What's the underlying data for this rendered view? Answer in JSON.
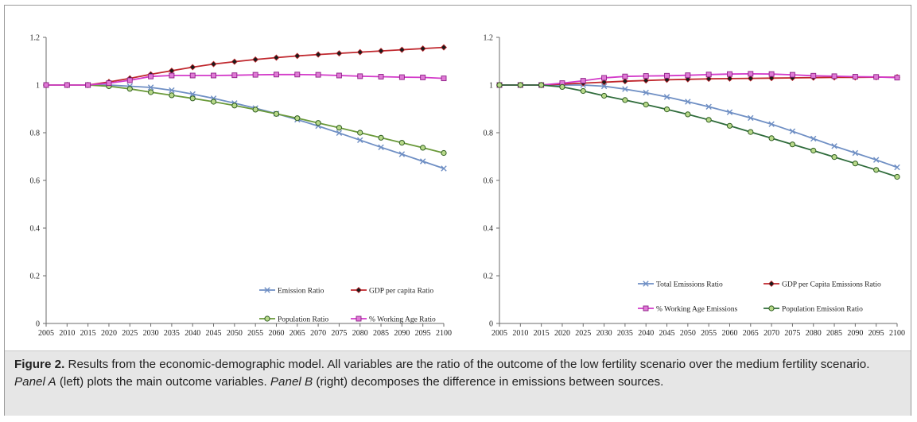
{
  "caption": {
    "label": "Figure 2.",
    "part1": " Results from the economic-demographic model. All variables are the ratio of the outcome of the low fertility scenario over the medium fertility scenario. ",
    "panel_a": "Panel A",
    "part2": " (left) plots the main outcome variables. ",
    "panel_b": "Panel B",
    "part3": " (right) decomposes the difference in emissions between sources."
  },
  "colors": {
    "blue": "#6f8fc4",
    "red": "#c0272d",
    "green": "#6a9a3a",
    "magenta": "#d33ac9"
  },
  "chart_data": [
    {
      "type": "line",
      "x": [
        2005,
        2010,
        2015,
        2020,
        2025,
        2030,
        2035,
        2040,
        2045,
        2050,
        2055,
        2060,
        2065,
        2070,
        2075,
        2080,
        2085,
        2090,
        2095,
        2100
      ],
      "ylim": [
        0,
        1.2
      ],
      "yticks": [
        "0",
        "0.2",
        "0.4",
        "0.6",
        "0.8",
        "1",
        "1.2"
      ],
      "yticks_values": [
        0,
        0.2,
        0.4,
        0.6,
        0.8,
        1.0,
        1.2
      ],
      "grid": false,
      "legend_position": "bottom-right",
      "series": [
        {
          "name": "Emission Ratio",
          "marker": "x",
          "color": "#6f8fc4",
          "values": [
            1.0,
            1.0,
            1.0,
            1.0,
            0.995,
            0.99,
            0.978,
            0.962,
            0.944,
            0.924,
            0.903,
            0.88,
            0.855,
            0.828,
            0.799,
            0.769,
            0.739,
            0.71,
            0.68,
            0.65
          ]
        },
        {
          "name": "GDP per capita Ratio",
          "marker": "diamond",
          "color": "#c0272d",
          "values": [
            1.0,
            1.0,
            1.0,
            1.013,
            1.028,
            1.045,
            1.06,
            1.075,
            1.088,
            1.098,
            1.107,
            1.115,
            1.122,
            1.128,
            1.133,
            1.138,
            1.143,
            1.148,
            1.153,
            1.158
          ]
        },
        {
          "name": "Population Ratio",
          "marker": "circle",
          "color": "#6a9a3a",
          "values": [
            1.0,
            1.0,
            1.0,
            0.995,
            0.984,
            0.97,
            0.957,
            0.944,
            0.93,
            0.914,
            0.897,
            0.879,
            0.861,
            0.841,
            0.821,
            0.8,
            0.779,
            0.758,
            0.737,
            0.715
          ]
        },
        {
          "name": "% Working Age Ratio",
          "marker": "square",
          "color": "#d33ac9",
          "values": [
            1.0,
            1.0,
            1.0,
            1.008,
            1.02,
            1.036,
            1.04,
            1.04,
            1.04,
            1.041,
            1.043,
            1.044,
            1.044,
            1.043,
            1.04,
            1.037,
            1.035,
            1.033,
            1.032,
            1.028
          ]
        }
      ]
    },
    {
      "type": "line",
      "x": [
        2005,
        2010,
        2015,
        2020,
        2025,
        2030,
        2035,
        2040,
        2045,
        2050,
        2055,
        2060,
        2065,
        2070,
        2075,
        2080,
        2085,
        2090,
        2095,
        2100
      ],
      "ylim": [
        0,
        1.2
      ],
      "yticks": [
        "0",
        "0.2",
        "0.4",
        "0.6",
        "0.8",
        "1",
        "1.2"
      ],
      "yticks_values": [
        0,
        0.2,
        0.4,
        0.6,
        0.8,
        1.0,
        1.2
      ],
      "grid": false,
      "legend_position": "bottom-right",
      "series": [
        {
          "name": "Total Emissions Ratio",
          "marker": "x",
          "color": "#6f8fc4",
          "values": [
            1.0,
            1.0,
            1.0,
            1.0,
            1.0,
            0.995,
            0.983,
            0.968,
            0.95,
            0.93,
            0.909,
            0.886,
            0.862,
            0.836,
            0.806,
            0.775,
            0.744,
            0.715,
            0.686,
            0.655
          ]
        },
        {
          "name": "GDP per Capita Emissions Ratio",
          "marker": "diamond",
          "color": "#c0272d",
          "values": [
            1.0,
            1.0,
            1.0,
            1.004,
            1.008,
            1.012,
            1.016,
            1.019,
            1.022,
            1.024,
            1.026,
            1.027,
            1.028,
            1.029,
            1.03,
            1.031,
            1.032,
            1.032,
            1.033,
            1.033
          ]
        },
        {
          "name": "% Working Age Emissions",
          "marker": "square",
          "color": "#d33ac9",
          "values": [
            1.0,
            1.0,
            1.0,
            1.008,
            1.018,
            1.03,
            1.036,
            1.038,
            1.039,
            1.041,
            1.044,
            1.046,
            1.047,
            1.046,
            1.043,
            1.039,
            1.037,
            1.035,
            1.034,
            1.031
          ]
        },
        {
          "name": "Population Emission Ratio",
          "marker": "circle",
          "color": "#2e6b3a",
          "values": [
            1.0,
            1.0,
            1.0,
            0.992,
            0.975,
            0.955,
            0.937,
            0.918,
            0.898,
            0.877,
            0.854,
            0.829,
            0.803,
            0.777,
            0.751,
            0.725,
            0.698,
            0.671,
            0.644,
            0.615
          ]
        }
      ]
    }
  ]
}
